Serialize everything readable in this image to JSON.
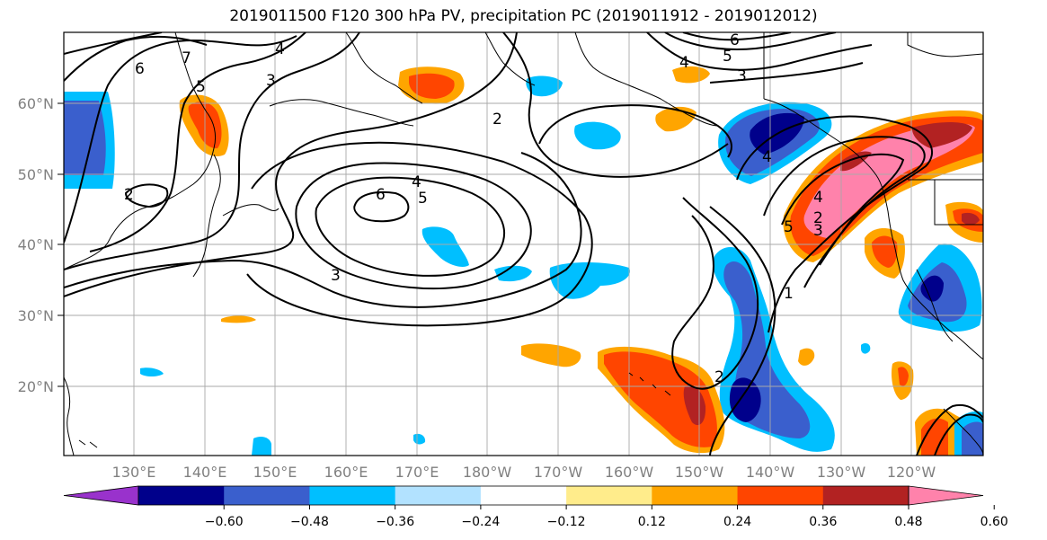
{
  "title": "2019011500 F120 300 hPa PV, precipitation PC (2019011912 - 2019012012)",
  "lat_ticks": [
    "60°N",
    "50°N",
    "40°N",
    "30°N",
    "20°N"
  ],
  "lon_ticks": [
    "130°E",
    "140°E",
    "150°E",
    "160°E",
    "170°E",
    "180°W",
    "170°W",
    "160°W",
    "150°W",
    "140°W",
    "130°W",
    "120°W"
  ],
  "colorbar": {
    "colors": [
      "#9932cc",
      "#00008b",
      "#3a5fcd",
      "#00bfff",
      "#b2e2ff",
      "#ffffff",
      "#ffec8b",
      "#ffa500",
      "#ff4500",
      "#b22222",
      "#ff82ab"
    ],
    "tick_labels": [
      "−0.60",
      "−0.48",
      "−0.36",
      "−0.24",
      "−0.12",
      "0.12",
      "0.24",
      "0.36",
      "0.48",
      "0.60"
    ]
  },
  "contour_labels": [
    "7",
    "6",
    "5",
    "4",
    "3",
    "2",
    "6",
    "5",
    "4",
    "3",
    "6",
    "5",
    "4",
    "3",
    "4",
    "2",
    "5",
    "4",
    "3",
    "2",
    "1",
    "2"
  ]
}
